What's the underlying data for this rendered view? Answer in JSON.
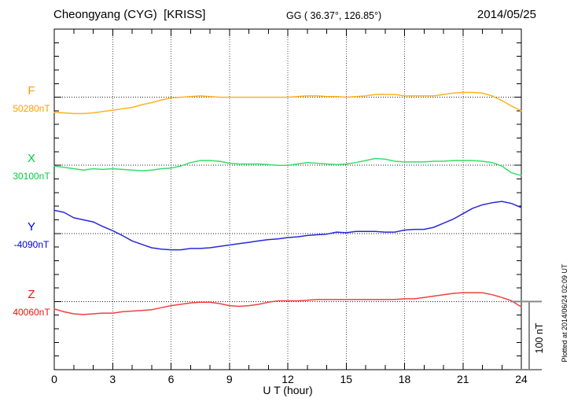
{
  "header": {
    "station": "Cheongyang (CYG)  [KRISS]",
    "coords": "GG ( 36.37°, 126.85°)",
    "date": "2014/05/25"
  },
  "footer": {
    "xlabel": "U T (hour)"
  },
  "side": {
    "scale_label": "100 nT",
    "plotted_note": "Plotted at 2014/06/24 02:09 UT"
  },
  "chart_data": {
    "type": "line",
    "title": "Cheongyang (CYG) [KRISS] magnetogram 2014/05/25",
    "xlabel": "U T (hour)",
    "xlim": [
      0,
      24
    ],
    "x_ticks": [
      0,
      3,
      6,
      9,
      12,
      15,
      18,
      21,
      24
    ],
    "x_step_hours": 0.5,
    "grid": "dotted vertical gridlines every 3 h; dotted horizontal baseline per trace",
    "scale_bar": {
      "label": "100 nT",
      "nT": 100
    },
    "series": [
      {
        "name": "F",
        "baseline_label": "50280nT",
        "baseline_nT": 50280,
        "color": "#ff9c00",
        "line_color": "#ffb321",
        "values_nT": [
          50258,
          50257,
          50256,
          50256,
          50257,
          50259,
          50261,
          50263,
          50265,
          50269,
          50272,
          50276,
          50279,
          50280,
          50281,
          50282,
          50281,
          50280,
          50280,
          50280,
          50280,
          50280,
          50280,
          50280,
          50280,
          50281,
          50282,
          50282,
          50281,
          50281,
          50280,
          50281,
          50282,
          50284,
          50284,
          50284,
          50282,
          50282,
          50282,
          50282,
          50284,
          50286,
          50287,
          50287,
          50286,
          50282,
          50275,
          50267,
          50260
        ]
      },
      {
        "name": "X",
        "baseline_label": "30100nT",
        "baseline_nT": 30100,
        "color": "#00cd3f",
        "line_color": "#35df68",
        "values_nT": [
          30099,
          30097,
          30095,
          30093,
          30095,
          30094,
          30095,
          30094,
          30093,
          30092,
          30093,
          30095,
          30096,
          30099,
          30104,
          30107,
          30107,
          30106,
          30103,
          30102,
          30102,
          30102,
          30101,
          30100,
          30100,
          30102,
          30104,
          30103,
          30102,
          30101,
          30102,
          30104,
          30107,
          30110,
          30109,
          30106,
          30105,
          30105,
          30105,
          30106,
          30106,
          30107,
          30107,
          30107,
          30106,
          30104,
          30099,
          30089,
          30085
        ]
      },
      {
        "name": "Y",
        "baseline_label": "-4090nT",
        "baseline_nT": -4090,
        "color": "#0000e0",
        "line_color": "#2929d8",
        "values_nT": [
          -4056,
          -4059,
          -4067,
          -4070,
          -4073,
          -4080,
          -4086,
          -4093,
          -4101,
          -4106,
          -4111,
          -4113,
          -4114,
          -4114,
          -4112,
          -4112,
          -4111,
          -4109,
          -4107,
          -4105,
          -4103,
          -4101,
          -4099,
          -4098,
          -4096,
          -4095,
          -4093,
          -4092,
          -4091,
          -4088,
          -4089,
          -4087,
          -4087,
          -4087,
          -4088,
          -4088,
          -4085,
          -4084,
          -4084,
          -4081,
          -4075,
          -4069,
          -4061,
          -4053,
          -4048,
          -4045,
          -4043,
          -4046,
          -4052
        ]
      },
      {
        "name": "Z",
        "baseline_label": "40060nT",
        "baseline_nT": 40060,
        "color": "#ee1111",
        "line_color": "#f34040",
        "values_nT": [
          40049,
          40045,
          40042,
          40041,
          40042,
          40043,
          40043,
          40045,
          40046,
          40047,
          40048,
          40051,
          40054,
          40056,
          40058,
          40059,
          40059,
          40057,
          40054,
          40053,
          40054,
          40056,
          40059,
          40061,
          40061,
          40061,
          40062,
          40063,
          40063,
          40063,
          40063,
          40063,
          40063,
          40063,
          40063,
          40063,
          40064,
          40064,
          40066,
          40068,
          40070,
          40072,
          40073,
          40073,
          40073,
          40070,
          40066,
          40061,
          40052
        ]
      }
    ]
  }
}
